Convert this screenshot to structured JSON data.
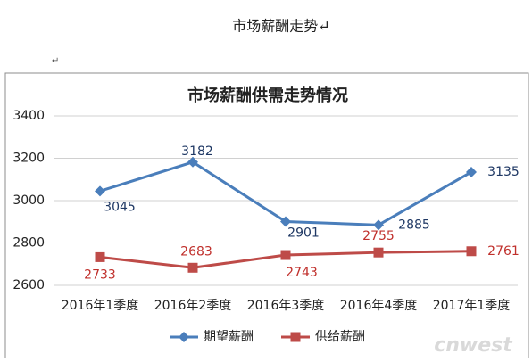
{
  "document": {
    "heading": "市场薪酬走势↵",
    "paragraph_mark": "↵",
    "watermark": "cnwest"
  },
  "chart_data": {
    "type": "line",
    "title": "市场薪酬供需走势情况",
    "categories": [
      "2016年1季度",
      "2016年2季度",
      "2016年3季度",
      "2016年4季度",
      "2017年1季度"
    ],
    "series": [
      {
        "name": "期望薪酬",
        "color": "#4a7ebb",
        "label_color": "#1f3864",
        "marker": "diamond",
        "values": [
          3045,
          3182,
          2901,
          2885,
          3135
        ]
      },
      {
        "name": "供给薪酬",
        "color": "#be4b48",
        "label_color": "#c0302c",
        "marker": "square",
        "values": [
          2733,
          2683,
          2743,
          2755,
          2761
        ]
      }
    ],
    "ylim": [
      2600,
      3400
    ],
    "yticks": [
      2600,
      2800,
      3000,
      3200,
      3400
    ],
    "grid": true,
    "legend": "bottom"
  }
}
